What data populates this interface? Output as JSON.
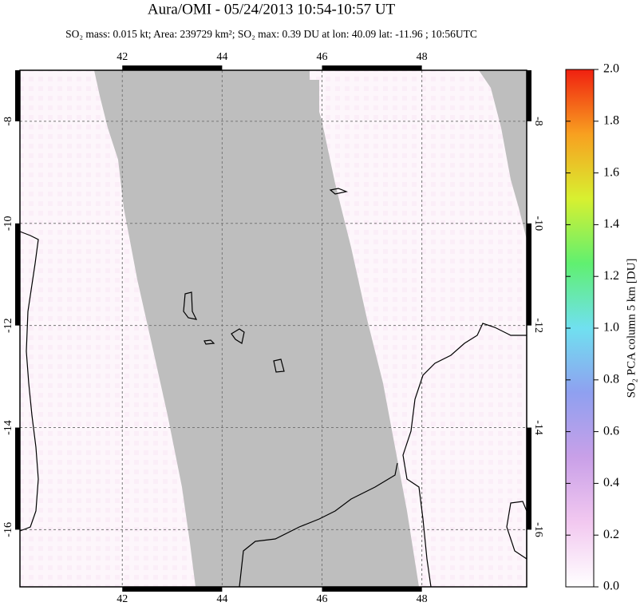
{
  "chart_data": {
    "type": "map",
    "title": "Aura/OMI - 05/24/2013 10:54-10:57 UT",
    "subtitle": "SO₂ mass: 0.015 kt; Area: 239729 km²; SO₂ max: 0.39 DU at lon: 40.09 lat: -11.96 ; 10:56UTC",
    "xlim": [
      39.95,
      50.1
    ],
    "ylim": [
      -17.12,
      -7.0
    ],
    "xticks": [
      42,
      44,
      46,
      48
    ],
    "yticks": [
      -8,
      -10,
      -12,
      -14,
      -16
    ],
    "grid": true,
    "colorbar": {
      "label": "SO₂ PCA column 5 km [DU]",
      "lim": [
        0,
        2.0
      ],
      "ticks": [
        {
          "value": 0,
          "label": "0.0"
        },
        0.2,
        0.4,
        0.6,
        0.8,
        {
          "value": 1,
          "label": "1.0"
        },
        1.2,
        1.4,
        1.6,
        1.8,
        {
          "value": 2,
          "label": "2.0"
        }
      ],
      "colors": [
        "#ffffff",
        "#f2c8f0",
        "#c9a0e8",
        "#8fa0f0",
        "#70e0f0",
        "#60f070",
        "#d8f030",
        "#f8a020",
        "#f02010"
      ]
    }
  }
}
